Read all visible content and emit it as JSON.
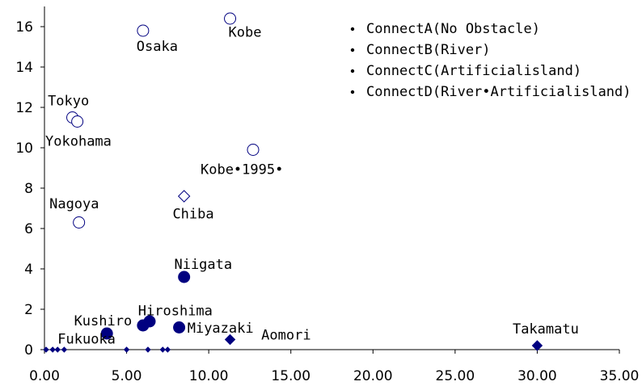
{
  "chart_data": {
    "type": "scatter",
    "xlim": [
      0,
      35
    ],
    "ylim": [
      0,
      17
    ],
    "x_ticks": [
      0,
      5,
      10,
      15,
      20,
      25,
      30,
      35
    ],
    "x_tick_labels": [
      "0.00",
      "5.00",
      "10.00",
      "15.00",
      "20.00",
      "25.00",
      "30.00",
      "35.00"
    ],
    "y_ticks": [
      0,
      2,
      4,
      6,
      8,
      10,
      12,
      14,
      16
    ],
    "y_tick_labels": [
      "0",
      "2",
      "4",
      "6",
      "8",
      "10",
      "12",
      "14",
      "16"
    ],
    "grid": false,
    "legend_position": "top-right",
    "series": [
      {
        "name": "ConnectA(No Obstacle)",
        "marker": "open-circle",
        "points": [
          {
            "x": 6.0,
            "y": 15.8
          },
          {
            "x": 11.3,
            "y": 16.4
          },
          {
            "x": 1.7,
            "y": 11.5
          },
          {
            "x": 2.0,
            "y": 11.3
          },
          {
            "x": 12.7,
            "y": 9.9
          },
          {
            "x": 2.1,
            "y": 6.3
          }
        ]
      },
      {
        "name": "ConnectB(River)",
        "marker": "filled-circle",
        "points": [
          {
            "x": 3.8,
            "y": 0.8
          },
          {
            "x": 6.0,
            "y": 1.2
          },
          {
            "x": 6.4,
            "y": 1.4
          },
          {
            "x": 8.2,
            "y": 1.1
          },
          {
            "x": 8.5,
            "y": 3.6
          }
        ]
      },
      {
        "name": "ConnectC(Artificialisland)",
        "marker": "open-diamond",
        "points": [
          {
            "x": 8.5,
            "y": 7.6
          }
        ]
      },
      {
        "name": "ConnectD(River•Artificialisland)",
        "marker": "filled-diamond",
        "points": [
          {
            "x": 11.3,
            "y": 0.5
          },
          {
            "x": 30.0,
            "y": 0.2
          },
          {
            "x": 0.1,
            "y": 0.0
          },
          {
            "x": 0.5,
            "y": 0.0
          },
          {
            "x": 0.8,
            "y": 0.0
          },
          {
            "x": 1.2,
            "y": 0.0
          },
          {
            "x": 5.0,
            "y": 0.0
          },
          {
            "x": 6.3,
            "y": 0.0
          },
          {
            "x": 7.2,
            "y": 0.0
          },
          {
            "x": 7.5,
            "y": 0.0
          }
        ]
      }
    ],
    "annotations": [
      {
        "text": "Osaka",
        "x": 5.6,
        "y": 14.8
      },
      {
        "text": "Kobe",
        "x": 11.2,
        "y": 15.5
      },
      {
        "text": "Tokyo",
        "x": 0.2,
        "y": 12.1
      },
      {
        "text": "Yokohama",
        "x": 0.05,
        "y": 10.1
      },
      {
        "text": "Kobe•1995•",
        "x": 9.5,
        "y": 8.7
      },
      {
        "text": "Chiba",
        "x": 7.8,
        "y": 6.5
      },
      {
        "text": "Nagoya",
        "x": 0.3,
        "y": 7.0
      },
      {
        "text": "Niigata",
        "x": 7.9,
        "y": 4.0
      },
      {
        "text": "Hiroshima",
        "x": 5.7,
        "y": 1.7
      },
      {
        "text": "Kushiro",
        "x": 1.8,
        "y": 1.2
      },
      {
        "text": "Fukuoka",
        "x": 0.8,
        "y": 0.3
      },
      {
        "text": "Miyazaki",
        "x": 8.7,
        "y": 0.85
      },
      {
        "text": "Aomori",
        "x": 13.2,
        "y": 0.5
      },
      {
        "text": "Takamatu",
        "x": 28.5,
        "y": 0.8
      }
    ]
  }
}
